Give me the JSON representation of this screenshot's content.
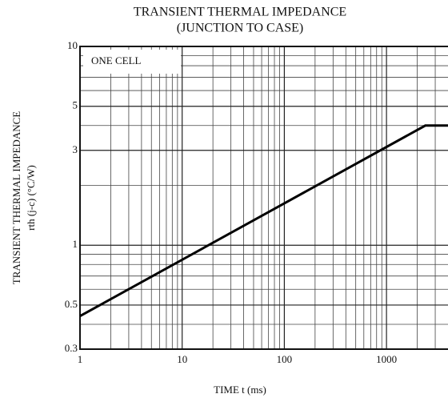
{
  "chart_data": {
    "type": "line",
    "title": "TRANSIENT THERMAL IMPEDANCE",
    "subtitle": "(JUNCTION TO CASE)",
    "y_label": "TRANSIENT THERMAL IMPEDANCE",
    "y_label_2": "rth (j-c)   (°C/W)",
    "x_label": "TIME   t   (ms)",
    "annotation": "ONE CELL",
    "log_x": true,
    "log_y": true,
    "grid": true,
    "xlim": [
      1,
      4000
    ],
    "ylim": [
      0.3,
      10
    ],
    "xticks": [
      1,
      10,
      100,
      1000
    ],
    "yticks": [
      0.3,
      0.5,
      1,
      3,
      5,
      10
    ],
    "xticks_minor": [
      2,
      3,
      4,
      5,
      6,
      7,
      8,
      9,
      20,
      30,
      40,
      50,
      60,
      70,
      80,
      90,
      200,
      300,
      400,
      500,
      600,
      700,
      800,
      900,
      2000,
      3000
    ],
    "yticks_minor": [
      0.4,
      0.6,
      0.7,
      0.8,
      0.9,
      2,
      4,
      6,
      7,
      8,
      9
    ],
    "series": [
      {
        "color": "#000000",
        "x": [
          1,
          2400,
          4000
        ],
        "values": [
          0.44,
          4.0,
          4.0
        ]
      }
    ]
  }
}
